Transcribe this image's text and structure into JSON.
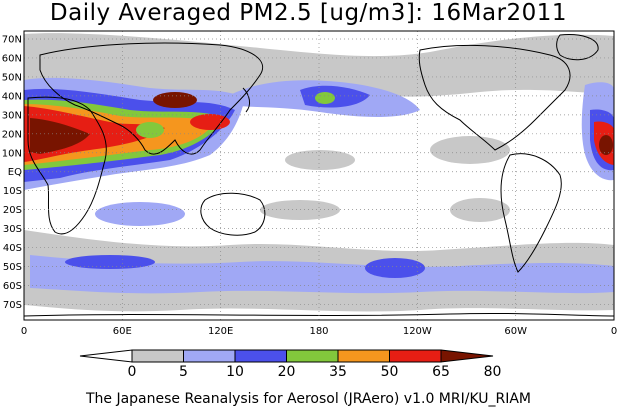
{
  "title": "Daily Averaged PM2.5 [ug/m3]: 16Mar2011",
  "footer": "The Japanese Reanalysis for Aerosol (JRAero) v1.0 MRI/KU_RIAM",
  "lat_labels": [
    "70N",
    "60N",
    "50N",
    "40N",
    "30N",
    "20N",
    "10N",
    "EQ",
    "10S",
    "20S",
    "30S",
    "40S",
    "50S",
    "60S",
    "70S"
  ],
  "lon_labels": [
    "0",
    "60E",
    "120E",
    "180",
    "120W",
    "60W",
    "0"
  ],
  "colorbar": {
    "levels": [
      "0",
      "5",
      "10",
      "20",
      "35",
      "50",
      "65",
      "80"
    ],
    "colors": [
      "#ffffff",
      "#c8c8c8",
      "#a0a8f5",
      "#4b50eb",
      "#82c83c",
      "#f5961e",
      "#e61e14",
      "#781400"
    ]
  },
  "colors": {
    "land_outline": "#000000",
    "gridline": "#888888",
    "low": "#c8c8c8",
    "light_blue": "#a0a8f5",
    "blue": "#4b50eb",
    "green": "#82c83c",
    "orange": "#f5961e",
    "red": "#e61e14",
    "dark_red": "#781400"
  }
}
